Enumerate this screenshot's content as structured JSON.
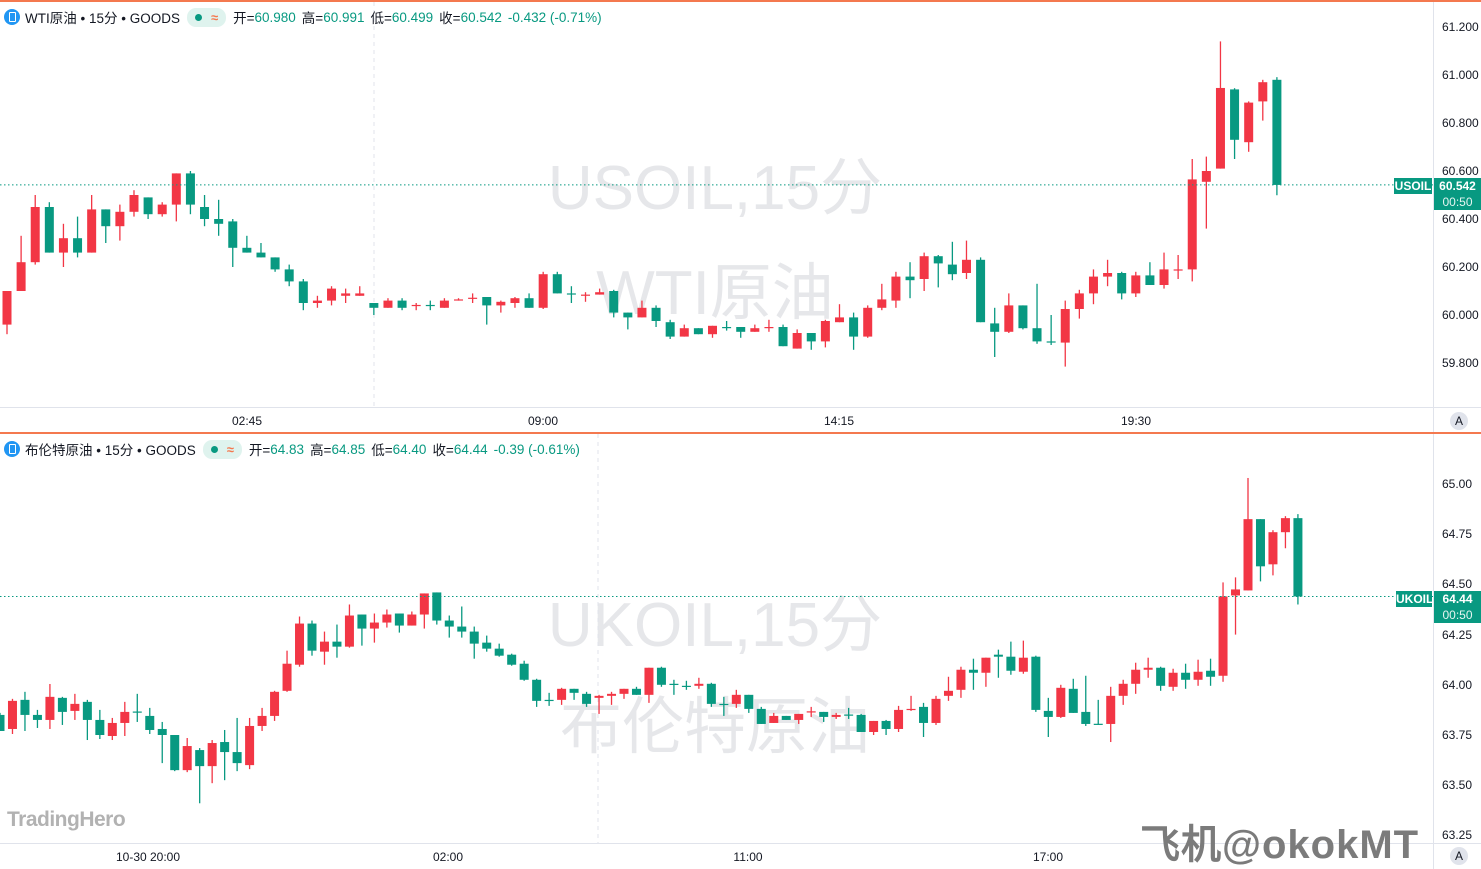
{
  "colors": {
    "up": "#f23645",
    "down": "#089981",
    "accent": "#f4794f",
    "watermark": "#e6e7ea"
  },
  "top": {
    "title": "WTI原油 • 15分 • GOODS",
    "open_label": "开=",
    "open": "60.980",
    "high_label": "高=",
    "high": "60.991",
    "low_label": "低=",
    "low": "60.499",
    "close_label": "收=",
    "close": "60.542",
    "change": "-0.432 (-0.71%)",
    "watermark_line1": "USOIL,15分",
    "watermark_line2": "WTI原油",
    "symbol_badge": "USOIL",
    "price_badge": "60.542",
    "countdown": "00:50",
    "last_price": 60.542,
    "price_ticks": [
      "61.200",
      "61.000",
      "60.800",
      "60.600",
      "60.400",
      "60.200",
      "60.000",
      "59.800"
    ],
    "time_labels": [
      "02:45",
      "09:00",
      "14:15",
      "19:30"
    ],
    "auto_button": "A",
    "candles": [
      [
        59.96,
        60.1,
        59.92,
        60.1
      ],
      [
        60.1,
        60.33,
        60.1,
        60.22
      ],
      [
        60.22,
        60.5,
        60.21,
        60.45
      ],
      [
        60.45,
        60.47,
        60.26,
        60.26
      ],
      [
        60.26,
        60.38,
        60.2,
        60.32
      ],
      [
        60.32,
        60.41,
        60.24,
        60.26
      ],
      [
        60.26,
        60.5,
        60.26,
        60.44
      ],
      [
        60.44,
        60.44,
        60.3,
        60.37
      ],
      [
        60.37,
        60.46,
        60.31,
        60.43
      ],
      [
        60.43,
        60.52,
        60.41,
        60.5
      ],
      [
        60.49,
        60.49,
        60.4,
        60.42
      ],
      [
        60.42,
        60.47,
        60.41,
        60.46
      ],
      [
        60.46,
        60.59,
        60.39,
        60.59
      ],
      [
        60.59,
        60.6,
        60.42,
        60.46
      ],
      [
        60.45,
        60.5,
        60.37,
        60.4
      ],
      [
        60.4,
        60.48,
        60.33,
        60.38
      ],
      [
        60.39,
        60.4,
        60.2,
        60.28
      ],
      [
        60.28,
        60.33,
        60.26,
        60.26
      ],
      [
        60.26,
        60.3,
        60.24,
        60.24
      ],
      [
        60.24,
        60.24,
        60.18,
        60.19
      ],
      [
        60.19,
        60.21,
        60.12,
        60.14
      ],
      [
        60.14,
        60.15,
        60.02,
        60.05
      ],
      [
        60.05,
        60.08,
        60.03,
        60.06
      ],
      [
        60.06,
        60.12,
        60.04,
        60.11
      ],
      [
        60.08,
        60.11,
        60.05,
        60.09
      ],
      [
        60.08,
        60.12,
        60.08,
        60.09
      ],
      [
        60.05,
        60.05,
        60.0,
        60.03
      ],
      [
        60.03,
        60.07,
        60.03,
        60.06
      ],
      [
        60.06,
        60.07,
        60.02,
        60.03
      ],
      [
        60.04,
        60.05,
        60.02,
        60.042
      ],
      [
        60.042,
        60.06,
        60.02,
        60.04
      ],
      [
        60.03,
        60.07,
        60.03,
        60.06
      ],
      [
        60.06,
        60.07,
        60.06,
        60.065
      ],
      [
        60.07,
        60.09,
        60.05,
        60.072
      ],
      [
        60.075,
        60.075,
        59.96,
        60.04
      ],
      [
        60.04,
        60.06,
        60.01,
        60.055
      ],
      [
        60.05,
        60.075,
        60.03,
        60.07
      ],
      [
        60.07,
        60.09,
        60.03,
        60.03
      ],
      [
        60.03,
        60.18,
        60.025,
        60.17
      ],
      [
        60.17,
        60.18,
        60.09,
        60.09
      ],
      [
        60.09,
        60.12,
        60.05,
        60.085
      ],
      [
        60.08,
        60.095,
        60.055,
        60.085
      ],
      [
        60.085,
        60.11,
        60.085,
        60.095
      ],
      [
        60.1,
        60.105,
        59.99,
        60.01
      ],
      [
        60.01,
        60.01,
        59.94,
        59.99
      ],
      [
        59.99,
        60.06,
        59.99,
        60.03
      ],
      [
        60.03,
        60.04,
        59.95,
        59.975
      ],
      [
        59.97,
        59.98,
        59.9,
        59.91
      ],
      [
        59.91,
        59.96,
        59.91,
        59.945
      ],
      [
        59.945,
        59.945,
        59.92,
        59.92
      ],
      [
        59.92,
        59.955,
        59.905,
        59.955
      ],
      [
        59.95,
        59.975,
        59.935,
        59.945
      ],
      [
        59.95,
        59.95,
        59.905,
        59.93
      ],
      [
        59.93,
        59.96,
        59.93,
        59.945
      ],
      [
        59.945,
        59.98,
        59.93,
        59.95
      ],
      [
        59.95,
        59.96,
        59.87,
        59.87
      ],
      [
        59.86,
        59.94,
        59.86,
        59.925
      ],
      [
        59.925,
        59.925,
        59.855,
        59.89
      ],
      [
        59.89,
        59.98,
        59.865,
        59.975
      ],
      [
        59.97,
        60.045,
        59.97,
        59.99
      ],
      [
        59.99,
        60.01,
        59.855,
        59.91
      ],
      [
        59.91,
        60.04,
        59.905,
        60.03
      ],
      [
        60.03,
        60.13,
        60.02,
        60.065
      ],
      [
        60.06,
        60.18,
        60.03,
        60.16
      ],
      [
        60.16,
        60.22,
        60.07,
        60.145
      ],
      [
        60.15,
        60.26,
        60.1,
        60.245
      ],
      [
        60.245,
        60.25,
        60.115,
        60.215
      ],
      [
        60.21,
        60.305,
        60.145,
        60.17
      ],
      [
        60.175,
        60.31,
        60.15,
        60.23
      ],
      [
        60.23,
        60.24,
        59.97,
        59.97
      ],
      [
        59.965,
        60.03,
        59.825,
        59.93
      ],
      [
        59.93,
        60.09,
        59.925,
        60.04
      ],
      [
        60.04,
        60.04,
        59.94,
        59.945
      ],
      [
        59.945,
        60.13,
        59.88,
        59.89
      ],
      [
        59.89,
        60.0,
        59.875,
        59.885
      ],
      [
        59.885,
        60.06,
        59.785,
        60.025
      ],
      [
        60.025,
        60.105,
        59.985,
        60.09
      ],
      [
        60.09,
        60.19,
        60.045,
        60.16
      ],
      [
        60.16,
        60.23,
        60.12,
        60.175
      ],
      [
        60.175,
        60.18,
        60.065,
        60.09
      ],
      [
        60.09,
        60.18,
        60.075,
        60.165
      ],
      [
        60.165,
        60.22,
        60.125,
        60.125
      ],
      [
        60.125,
        60.26,
        60.11,
        60.19
      ],
      [
        60.185,
        60.25,
        60.15,
        60.19
      ],
      [
        60.19,
        60.65,
        60.14,
        60.565
      ],
      [
        60.555,
        60.66,
        60.36,
        60.6
      ],
      [
        60.61,
        61.14,
        60.61,
        60.946
      ],
      [
        60.94,
        60.945,
        60.65,
        60.73
      ],
      [
        60.72,
        60.89,
        60.68,
        60.885
      ],
      [
        60.89,
        60.98,
        60.81,
        60.97
      ],
      [
        60.98,
        60.991,
        60.499,
        60.542
      ]
    ]
  },
  "bottom": {
    "title": "布伦特原油 • 15分 • GOODS",
    "open_label": "开=",
    "open": "64.83",
    "high_label": "高=",
    "high": "64.85",
    "low_label": "低=",
    "low": "64.40",
    "close_label": "收=",
    "close": "64.44",
    "change": "-0.39 (-0.61%)",
    "watermark_line1": "UKOIL,15分",
    "watermark_line2": "布伦特原油",
    "symbol_badge": "UKOIL",
    "price_badge": "64.44",
    "countdown": "00:50",
    "last_price": 64.44,
    "price_ticks": [
      "65.00",
      "64.75",
      "64.50",
      "64.25",
      "64.00",
      "63.75",
      "63.50",
      "63.25"
    ],
    "time_labels": [
      "10-30 20:00",
      "02:00",
      "11:00",
      "17:00"
    ],
    "auto_button": "A",
    "candles": [
      [
        63.85,
        63.86,
        63.77,
        63.77
      ],
      [
        63.78,
        63.93,
        63.755,
        63.92
      ],
      [
        63.925,
        63.965,
        63.77,
        63.85
      ],
      [
        63.85,
        63.875,
        63.785,
        63.825
      ],
      [
        63.825,
        64.004,
        63.78,
        63.94
      ],
      [
        63.935,
        63.94,
        63.8,
        63.865
      ],
      [
        63.87,
        63.955,
        63.825,
        63.905
      ],
      [
        63.915,
        63.925,
        63.725,
        63.825
      ],
      [
        63.825,
        63.875,
        63.73,
        63.75
      ],
      [
        63.745,
        63.835,
        63.725,
        63.81
      ],
      [
        63.81,
        63.915,
        63.745,
        63.865
      ],
      [
        63.867,
        63.955,
        63.815,
        63.863
      ],
      [
        63.845,
        63.885,
        63.755,
        63.775
      ],
      [
        63.78,
        63.815,
        63.61,
        63.75
      ],
      [
        63.75,
        63.75,
        63.57,
        63.575
      ],
      [
        63.575,
        63.735,
        63.565,
        63.695
      ],
      [
        63.675,
        63.685,
        63.41,
        63.595
      ],
      [
        63.595,
        63.725,
        63.51,
        63.71
      ],
      [
        63.715,
        63.775,
        63.525,
        63.665
      ],
      [
        63.665,
        63.835,
        63.57,
        63.61
      ],
      [
        63.6,
        63.835,
        63.58,
        63.795
      ],
      [
        63.795,
        63.885,
        63.77,
        63.845
      ],
      [
        63.845,
        63.97,
        63.82,
        63.965
      ],
      [
        63.97,
        64.17,
        63.965,
        64.105
      ],
      [
        64.1,
        64.34,
        64.09,
        64.305
      ],
      [
        64.305,
        64.32,
        64.145,
        64.17
      ],
      [
        64.165,
        64.265,
        64.1,
        64.215
      ],
      [
        64.215,
        64.3,
        64.135,
        64.19
      ],
      [
        64.19,
        64.4,
        64.185,
        64.345
      ],
      [
        64.35,
        64.35,
        64.195,
        64.28
      ],
      [
        64.28,
        64.355,
        64.21,
        64.31
      ],
      [
        64.31,
        64.375,
        64.285,
        64.35
      ],
      [
        64.355,
        64.355,
        64.26,
        64.295
      ],
      [
        64.295,
        64.365,
        64.295,
        64.35
      ],
      [
        64.35,
        64.455,
        64.28,
        64.455
      ],
      [
        64.46,
        64.46,
        64.3,
        64.32
      ],
      [
        64.32,
        64.345,
        64.235,
        64.29
      ],
      [
        64.29,
        64.39,
        64.235,
        64.265
      ],
      [
        64.265,
        64.29,
        64.13,
        64.205
      ],
      [
        64.21,
        64.245,
        64.165,
        64.18
      ],
      [
        64.18,
        64.205,
        64.14,
        64.145
      ],
      [
        64.15,
        64.155,
        64.095,
        64.1
      ],
      [
        64.105,
        64.12,
        64.02,
        64.025
      ],
      [
        64.025,
        64.03,
        63.89,
        63.92
      ],
      [
        63.925,
        63.96,
        63.895,
        63.92
      ],
      [
        63.925,
        63.985,
        63.9,
        63.98
      ],
      [
        63.98,
        63.98,
        63.925,
        63.96
      ],
      [
        63.955,
        63.965,
        63.89,
        63.905
      ],
      [
        63.935,
        63.95,
        63.855,
        63.945
      ],
      [
        63.945,
        63.965,
        63.9,
        63.955
      ],
      [
        63.955,
        63.98,
        63.93,
        63.98
      ],
      [
        63.98,
        63.99,
        63.95,
        63.95
      ],
      [
        63.95,
        64.085,
        63.91,
        64.085
      ],
      [
        64.085,
        64.09,
        63.99,
        64.0
      ],
      [
        64.005,
        64.025,
        63.95,
        64.0
      ],
      [
        63.995,
        64.02,
        63.975,
        63.99
      ],
      [
        63.995,
        64.035,
        63.98,
        64.005
      ],
      [
        64.005,
        64.01,
        63.89,
        63.905
      ],
      [
        63.905,
        63.94,
        63.845,
        63.9
      ],
      [
        63.905,
        63.975,
        63.885,
        63.95
      ],
      [
        63.95,
        63.95,
        63.86,
        63.88
      ],
      [
        63.88,
        63.89,
        63.805,
        63.805
      ],
      [
        63.81,
        63.86,
        63.81,
        63.845
      ],
      [
        63.845,
        63.845,
        63.825,
        63.825
      ],
      [
        63.825,
        63.855,
        63.805,
        63.855
      ],
      [
        63.862,
        63.89,
        63.84,
        63.868
      ],
      [
        63.865,
        63.865,
        63.815,
        63.84
      ],
      [
        63.84,
        63.86,
        63.83,
        63.85
      ],
      [
        63.852,
        63.885,
        63.83,
        63.848
      ],
      [
        63.85,
        63.855,
        63.765,
        63.765
      ],
      [
        63.765,
        63.82,
        63.75,
        63.82
      ],
      [
        63.82,
        63.825,
        63.75,
        63.78
      ],
      [
        63.78,
        63.895,
        63.765,
        63.875
      ],
      [
        63.875,
        63.945,
        63.87,
        63.88
      ],
      [
        63.89,
        63.91,
        63.74,
        63.81
      ],
      [
        63.81,
        63.945,
        63.8,
        63.93
      ],
      [
        63.945,
        64.04,
        63.92,
        63.97
      ],
      [
        63.975,
        64.09,
        63.935,
        64.075
      ],
      [
        64.075,
        64.13,
        63.975,
        64.06
      ],
      [
        64.06,
        64.135,
        63.99,
        64.135
      ],
      [
        64.15,
        64.175,
        64.035,
        64.14
      ],
      [
        64.14,
        64.215,
        64.05,
        64.07
      ],
      [
        64.065,
        64.22,
        64.055,
        64.135
      ],
      [
        64.14,
        64.145,
        63.865,
        63.875
      ],
      [
        63.87,
        63.935,
        63.74,
        63.84
      ],
      [
        63.84,
        64.0,
        63.835,
        63.985
      ],
      [
        63.98,
        64.03,
        63.86,
        63.86
      ],
      [
        63.865,
        64.045,
        63.795,
        63.805
      ],
      [
        63.806,
        63.925,
        63.8,
        63.804
      ],
      [
        63.805,
        63.99,
        63.715,
        63.945
      ],
      [
        63.945,
        64.025,
        63.9,
        64.005
      ],
      [
        64.005,
        64.11,
        63.955,
        64.075
      ],
      [
        64.075,
        64.135,
        64.035,
        64.085
      ],
      [
        64.085,
        64.09,
        63.97,
        63.995
      ],
      [
        63.99,
        64.08,
        63.97,
        64.06
      ],
      [
        64.06,
        64.105,
        63.98,
        64.025
      ],
      [
        64.025,
        64.125,
        63.995,
        64.065
      ],
      [
        64.07,
        64.13,
        63.995,
        64.04
      ],
      [
        64.045,
        64.51,
        64.015,
        64.44
      ],
      [
        64.445,
        64.535,
        64.25,
        64.475
      ],
      [
        64.47,
        65.03,
        64.47,
        64.825
      ],
      [
        64.825,
        64.825,
        64.515,
        64.59
      ],
      [
        64.6,
        64.77,
        64.545,
        64.76
      ],
      [
        64.76,
        64.84,
        64.68,
        64.83
      ],
      [
        64.83,
        64.85,
        64.4,
        64.44
      ]
    ]
  },
  "branding": {
    "logo": "TradingHero",
    "watermark": "飞机@okokMT"
  }
}
